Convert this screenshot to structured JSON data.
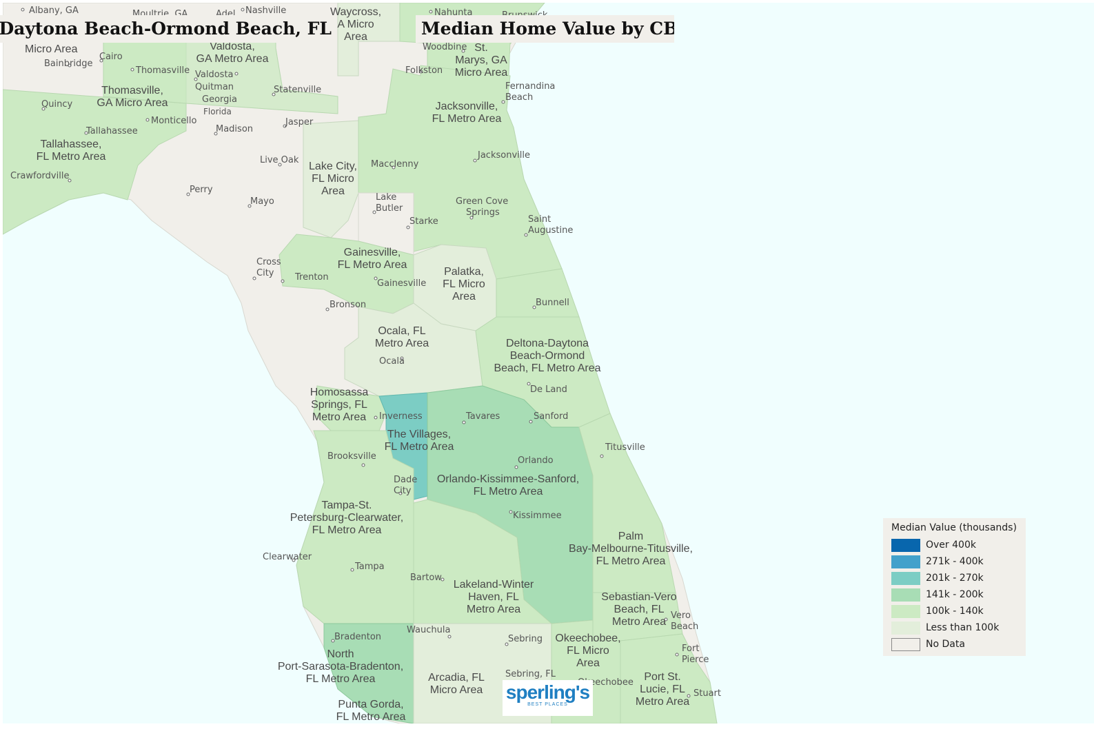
{
  "titles": {
    "left": "Deltona-Daytona Beach-Ormond Beach, FL",
    "right": "Median Home Value by CBSA"
  },
  "legend": {
    "title": "Median Value (thousands)",
    "items": [
      {
        "label": "Over 400k",
        "color": "#0866ad"
      },
      {
        "label": "271k - 400k",
        "color": "#42a1cb"
      },
      {
        "label": "201k - 270k",
        "color": "#7ccdc4"
      },
      {
        "label": "141k - 200k",
        "color": "#a8ddb5"
      },
      {
        "label": "100k - 140k",
        "color": "#cceac3"
      },
      {
        "label": "Less than 100k",
        "color": "#e3eedb"
      },
      {
        "label": "No Data",
        "color": "#f1efea"
      }
    ]
  },
  "colors": {
    "water": "#f0fefe",
    "no_data_land": "#f1efea"
  },
  "logo": {
    "brand": "sperling's",
    "tagline": "BEST PLACES"
  },
  "places": {
    "albany": "Albany, GA",
    "moultrie": "Moultrie, GA",
    "adel": "Adel",
    "nashville": "Nashville",
    "nahunta": "Nahunta",
    "brunswick": "Brunswick",
    "cairo": "Cairo",
    "bainbridge": "Bainbridge",
    "thomasville": "Thomasville",
    "valdosta": "Valdosta",
    "quitman": "Quitman",
    "statenville": "Statenville",
    "woodbine": "Woodbine",
    "folkston": "Folkston",
    "fernandina1": "Fernandina",
    "fernandina2": "Beach",
    "quincy": "Quincy",
    "monticello": "Monticello",
    "tallahassee": "Tallahassee",
    "madison": "Madison",
    "jasper": "Jasper",
    "georgia": "Georgia",
    "florida": "Florida",
    "crawfordville": "Crawfordville",
    "liveoak": "Live Oak",
    "macclenny": "Macclenny",
    "jacksonville": "Jacksonville",
    "perry": "Perry",
    "mayo": "Mayo",
    "lakebutler1": "Lake",
    "lakebutler2": "Butler",
    "starke": "Starke",
    "greencove1": "Green Cove",
    "greencove2": "Springs",
    "staug1": "Saint",
    "staug2": "Augustine",
    "crosscity1": "Cross",
    "crosscity2": "City",
    "trenton": "Trenton",
    "gainesville": "Gainesville",
    "bronson": "Bronson",
    "bunnell": "Bunnell",
    "ocala": "Ocala",
    "deland": "De Land",
    "inverness": "Inverness",
    "tavares": "Tavares",
    "sanford": "Sanford",
    "titusville": "Titusville",
    "brooksville": "Brooksville",
    "orlando": "Orlando",
    "dadecity1": "Dade",
    "dadecity2": "City",
    "kissimmee": "Kissimmee",
    "clearwater": "Clearwater",
    "tampa": "Tampa",
    "bartow": "Bartow",
    "vero1": "Vero",
    "vero2": "Beach",
    "bradenton": "Bradenton",
    "wauchula": "Wauchula",
    "sebring": "Sebring",
    "sebring2": "Sebring, FL",
    "okeechobee": "Okeechobee",
    "fortpierce1": "Fort",
    "fortpierce2": "Pierce",
    "stuart": "Stuart"
  },
  "regions": {
    "micro_area_top": "Micro Area",
    "valdosta_metro": [
      "Valdosta,",
      "GA Metro Area"
    ],
    "waycross": [
      "Waycross,",
      "A Micro",
      "Area"
    ],
    "stmarys": [
      "St.",
      "Marys, GA",
      "Micro Area"
    ],
    "thomasville_micro": [
      "Thomasville,",
      "GA Micro Area"
    ],
    "jacksonville_metro": [
      "Jacksonville,",
      "FL Metro Area"
    ],
    "tallahassee_metro": [
      "Tallahassee,",
      "FL Metro Area"
    ],
    "lakecity_micro": [
      "Lake City,",
      "FL Micro",
      "Area"
    ],
    "gainesville_metro": [
      "Gainesville,",
      "FL Metro Area"
    ],
    "palatka_micro": [
      "Palatka,",
      "FL Micro",
      "Area"
    ],
    "ocala_metro": [
      "Ocala, FL",
      "Metro Area"
    ],
    "deltona_metro": [
      "Deltona-Daytona",
      "Beach-Ormond",
      "Beach, FL Metro Area"
    ],
    "homosassa_metro": [
      "Homosassa",
      "Springs, FL",
      "Metro Area"
    ],
    "villages_metro": [
      "The Villages,",
      "FL Metro Area"
    ],
    "orlando_metro": [
      "Orlando-Kissimmee-Sanford,",
      "FL Metro Area"
    ],
    "tampa_metro": [
      "Tampa-St.",
      "Petersburg-Clearwater,",
      "FL Metro Area"
    ],
    "palmbay_metro": [
      "Palm",
      "Bay-Melbourne-Titusville,",
      "FL Metro Area"
    ],
    "lakeland_metro": [
      "Lakeland-Winter",
      "Haven, FL",
      "Metro Area"
    ],
    "sebastian_metro": [
      "Sebastian-Vero",
      "Beach, FL",
      "Metro Area"
    ],
    "okeechobee_micro": [
      "Okeechobee,",
      "FL Micro",
      "Area"
    ],
    "northport_metro": [
      "North",
      "Port-Sarasota-Bradenton,",
      "FL Metro Area"
    ],
    "arcadia_micro": [
      "Arcadia, FL",
      "Micro Area"
    ],
    "portstlucie_metro": [
      "Port St.",
      "Lucie, FL",
      "Metro Area"
    ],
    "puntagorda_metro": [
      "Punta Gorda,",
      "FL Metro Area"
    ]
  }
}
